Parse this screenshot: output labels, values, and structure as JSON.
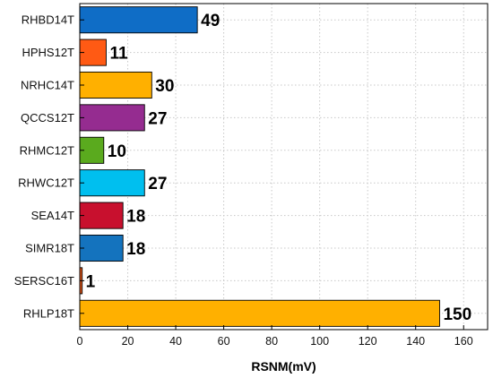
{
  "chart_data": {
    "type": "bar",
    "orientation": "horizontal",
    "categories": [
      "RHBD14T",
      "HPHS12T",
      "NRHC14T",
      "QCCS12T",
      "RHMC12T",
      "RHWC12T",
      "SEA14T",
      "SIMR18T",
      "SERSC16T",
      "RHLP18T"
    ],
    "values": [
      49,
      11,
      30,
      27,
      10,
      27,
      18,
      18,
      1,
      150
    ],
    "value_labels": [
      "49",
      "11",
      "30",
      "27",
      "10",
      "27",
      "18",
      "18",
      "1",
      "150"
    ],
    "colors": [
      "#0F6DC6",
      "#FF5A14",
      "#FFB000",
      "#952C90",
      "#5AAA1E",
      "#00BFEF",
      "#C8102E",
      "#1473BE",
      "#E85A1B",
      "#FFB000"
    ],
    "xlabel": "RSNM(mV)",
    "ylabel": "",
    "title": "",
    "xlim": [
      0,
      170
    ],
    "xticks": [
      "0",
      "20",
      "40",
      "60",
      "80",
      "100",
      "120",
      "140",
      "160"
    ],
    "grid": true
  }
}
